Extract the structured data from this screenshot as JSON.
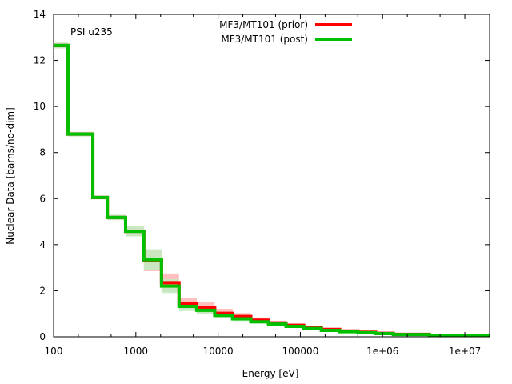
{
  "chart_data": {
    "type": "line",
    "subtype": "step-histogram-with-uncertainty-bands",
    "title": "",
    "annotation": "PSI u235",
    "xlabel": "Energy [eV]",
    "ylabel": "Nuclear Data [barns/no-dim]",
    "xscale": "log",
    "xlim": [
      100,
      20000000
    ],
    "ylim": [
      0,
      14
    ],
    "xticks": [
      {
        "value": 100,
        "label": "100"
      },
      {
        "value": 1000,
        "label": "1000"
      },
      {
        "value": 10000,
        "label": "10000"
      },
      {
        "value": 100000,
        "label": "100000"
      },
      {
        "value": 1000000,
        "label": "1e+06"
      },
      {
        "value": 10000000,
        "label": "1e+07"
      }
    ],
    "yticks": [
      {
        "value": 0,
        "label": "0"
      },
      {
        "value": 2,
        "label": "2"
      },
      {
        "value": 4,
        "label": "4"
      },
      {
        "value": 6,
        "label": "6"
      },
      {
        "value": 8,
        "label": "8"
      },
      {
        "value": 10,
        "label": "10"
      },
      {
        "value": 12,
        "label": "12"
      },
      {
        "value": 14,
        "label": "14"
      }
    ],
    "grid": false,
    "legend_position": "top-center",
    "bin_edges": [
      100,
      150,
      300,
      450,
      750,
      1250,
      2050,
      3350,
      5500,
      9100,
      15000,
      25000,
      41000,
      67000,
      110000,
      180000,
      300000,
      500000,
      820000,
      1350000,
      3700000,
      20000000
    ],
    "series": [
      {
        "name": "MF3/MT101 (prior)",
        "color": "#ff0000",
        "band_color": "#ffc0c0",
        "values": [
          12.65,
          8.8,
          6.05,
          5.18,
          4.58,
          3.3,
          2.35,
          1.45,
          1.28,
          1.02,
          0.88,
          0.72,
          0.6,
          0.5,
          0.4,
          0.32,
          0.25,
          0.2,
          0.15,
          0.11,
          0.07
        ],
        "errors": [
          0.12,
          0.1,
          0.08,
          0.1,
          0.2,
          0.45,
          0.4,
          0.25,
          0.25,
          0.2,
          0.15,
          0.12,
          0.1,
          0.08,
          0.06,
          0.05,
          0.04,
          0.03,
          0.02,
          0.02,
          0.01
        ]
      },
      {
        "name": "MF3/MT101 (post)",
        "color": "#00c000",
        "band_color": "#c0ecc0",
        "values": [
          12.65,
          8.8,
          6.05,
          5.18,
          4.58,
          3.35,
          2.2,
          1.32,
          1.15,
          0.93,
          0.78,
          0.65,
          0.55,
          0.45,
          0.36,
          0.28,
          0.22,
          0.18,
          0.14,
          0.1,
          0.06
        ],
        "errors": [
          0.12,
          0.1,
          0.08,
          0.12,
          0.22,
          0.45,
          0.3,
          0.2,
          0.15,
          0.12,
          0.1,
          0.08,
          0.07,
          0.06,
          0.05,
          0.04,
          0.03,
          0.03,
          0.02,
          0.02,
          0.01
        ]
      }
    ]
  }
}
